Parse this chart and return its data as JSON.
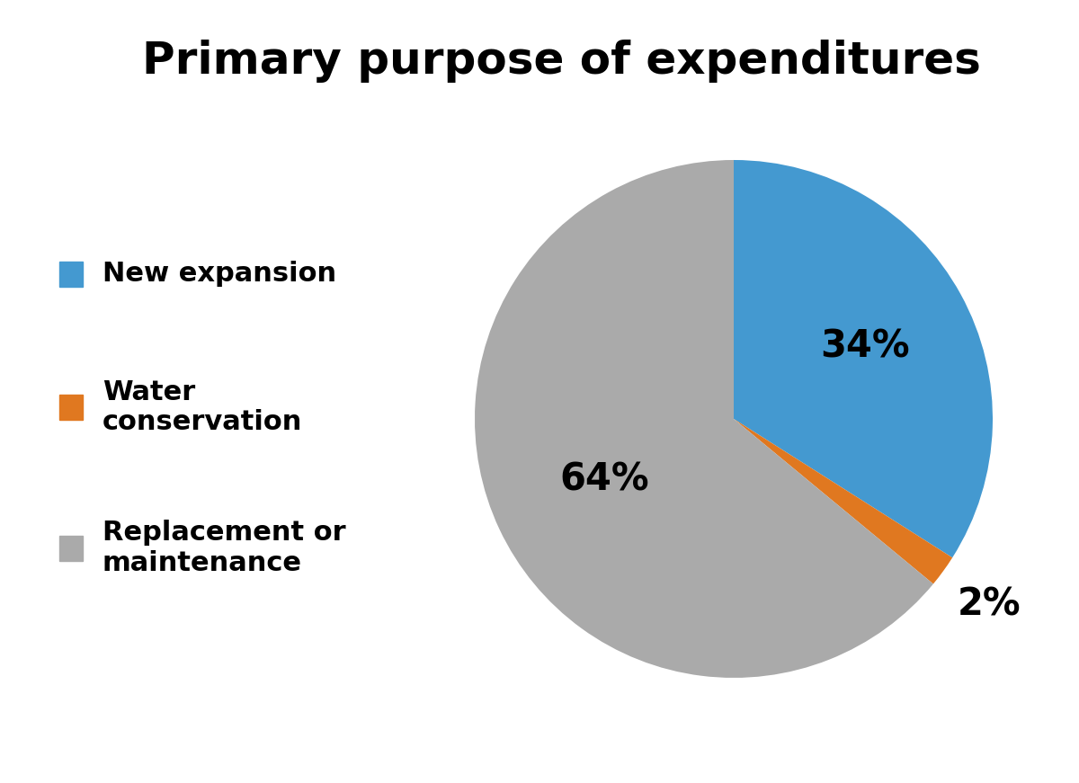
{
  "title": "Primary purpose of expenditures",
  "title_fontsize": 36,
  "title_fontweight": "bold",
  "slices": [
    34,
    2,
    64
  ],
  "labels": [
    "New expansion",
    "Water\nconservation",
    "Replacement or\nmaintenance"
  ],
  "colors": [
    "#4499d0",
    "#e07820",
    "#aaaaaa"
  ],
  "pct_labels": [
    "34%",
    "2%",
    "64%"
  ],
  "background_color": "#ffffff",
  "legend_fontsize": 22,
  "legend_fontweight": "bold",
  "pct_fontsize": 30,
  "pct_fontweight": "bold",
  "startangle": 90
}
